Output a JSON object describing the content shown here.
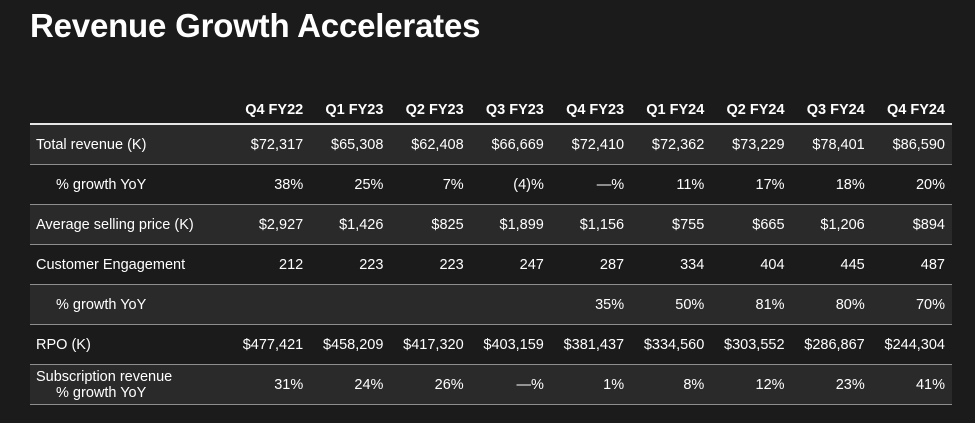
{
  "title": "Revenue Growth Accelerates",
  "table": {
    "columns": [
      "Q4 FY22",
      "Q1 FY23",
      "Q2 FY23",
      "Q3 FY23",
      "Q4 FY23",
      "Q1 FY24",
      "Q2 FY24",
      "Q3 FY24",
      "Q4 FY24"
    ],
    "rows": [
      {
        "label": "Total revenue (K)",
        "values": [
          "$72,317",
          "$65,308",
          "$62,408",
          "$66,669",
          "$72,410",
          "$72,362",
          "$73,229",
          "$78,401",
          "$86,590"
        ]
      },
      {
        "label": "% growth YoY",
        "values": [
          "38%",
          "25%",
          "7%",
          "(4)%",
          "—%",
          "11%",
          "17%",
          "18%",
          "20%"
        ]
      },
      {
        "label": "Average selling price (K)",
        "values": [
          "$2,927",
          "$1,426",
          "$825",
          "$1,899",
          "$1,156",
          "$755",
          "$665",
          "$1,206",
          "$894"
        ]
      },
      {
        "label": "Customer Engagement",
        "values": [
          "212",
          "223",
          "223",
          "247",
          "287",
          "334",
          "404",
          "445",
          "487"
        ]
      },
      {
        "label": "% growth YoY",
        "values": [
          "",
          "",
          "",
          "",
          "35%",
          "50%",
          "81%",
          "80%",
          "70%"
        ]
      },
      {
        "label": "RPO (K)",
        "values": [
          "$477,421",
          "$458,209",
          "$417,320",
          "$403,159",
          "$381,437",
          "$334,560",
          "$303,552",
          "$286,867",
          "$244,304"
        ]
      },
      {
        "label_line1": "Subscription revenue",
        "label_line2": "% growth YoY",
        "values": [
          "31%",
          "24%",
          "26%",
          "—%",
          "1%",
          "8%",
          "12%",
          "23%",
          "41%"
        ]
      }
    ]
  }
}
